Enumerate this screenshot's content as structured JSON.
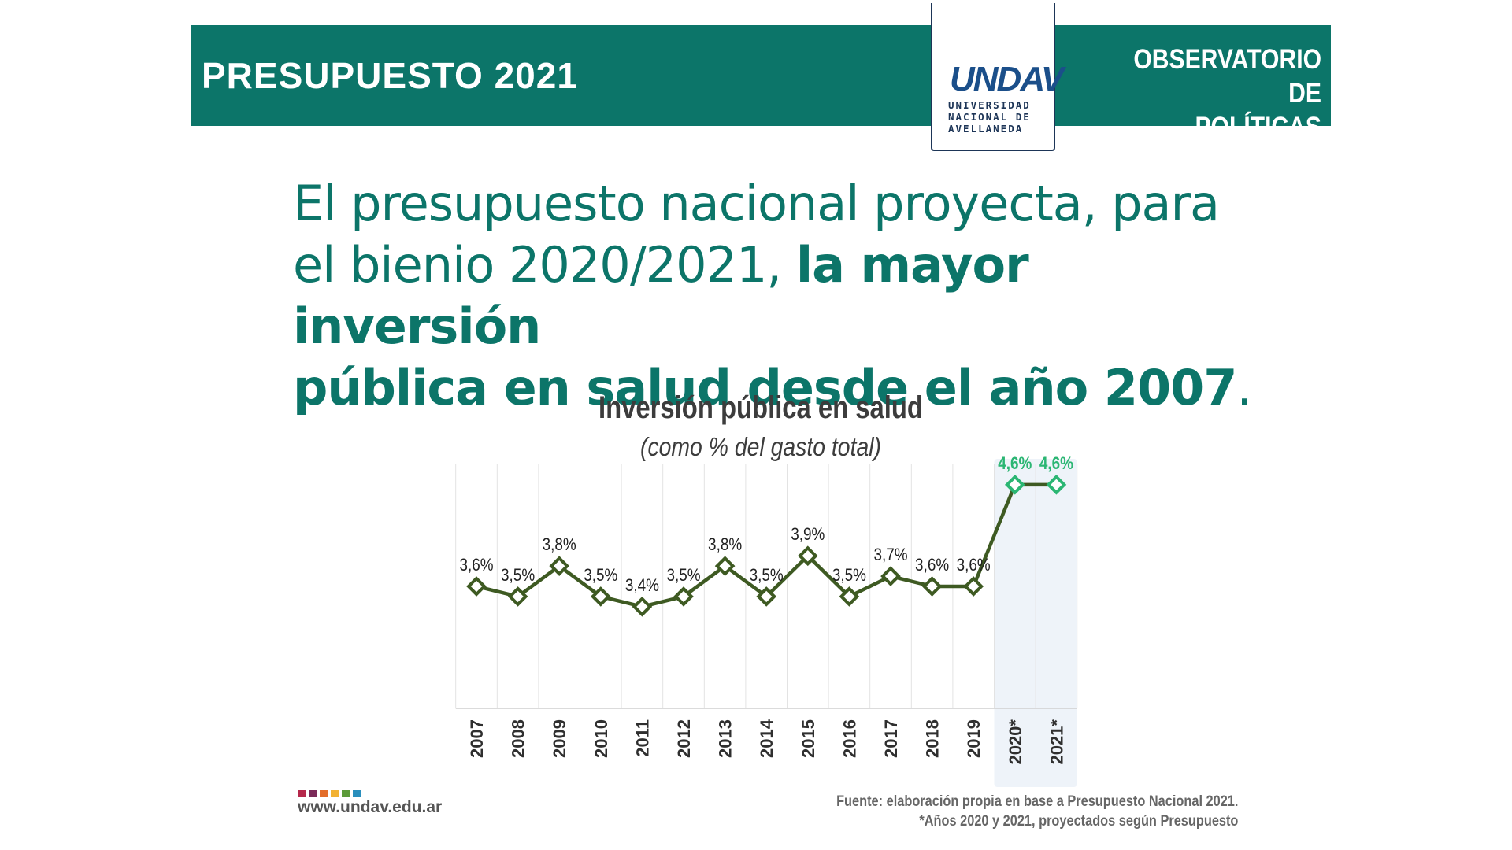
{
  "header": {
    "left_title": "PRESUPUESTO 2021",
    "right_title_line1": "OBSERVATORIO DE",
    "right_title_line2": "POLÍTICAS PÚBLICAS",
    "logo_mark": "UNDAV",
    "logo_line1": "UNIVERSIDAD",
    "logo_line2": "NACIONAL DE",
    "logo_line3": "AVELLANEDA"
  },
  "headline": {
    "line1": "El presupuesto nacional proyecta, para",
    "line2_regular": "el bienio 2020/2021, ",
    "line2_bold": "la mayor inversión",
    "line3_bold": "pública en salud desde el año 2007",
    "line3_end": "."
  },
  "colors": {
    "brand": "#0c7569",
    "series": "#3e5a22",
    "projected": "#2bb673",
    "highlight_band": "#eef3f9"
  },
  "chart_data": {
    "type": "line",
    "title": "Inversión pública en salud",
    "subtitle": "(como % del gasto total)",
    "categories": [
      "2007",
      "2008",
      "2009",
      "2010",
      "2011",
      "2012",
      "2013",
      "2014",
      "2015",
      "2016",
      "2017",
      "2018",
      "2019",
      "2020*",
      "2021*"
    ],
    "values": [
      3.6,
      3.5,
      3.8,
      3.5,
      3.4,
      3.5,
      3.8,
      3.5,
      3.9,
      3.5,
      3.7,
      3.6,
      3.6,
      4.6,
      4.6
    ],
    "labels": [
      "3,6%",
      "3,5%",
      "3,8%",
      "3,5%",
      "3,4%",
      "3,5%",
      "3,8%",
      "3,5%",
      "3,9%",
      "3,5%",
      "3,7%",
      "3,6%",
      "3,6%",
      "4,6%",
      "4,6%"
    ],
    "projected": [
      false,
      false,
      false,
      false,
      false,
      false,
      false,
      false,
      false,
      false,
      false,
      false,
      false,
      true,
      true
    ],
    "grid": true,
    "legend": "none"
  },
  "footer": {
    "url": "www.undav.edu.ar",
    "source_line1": "Fuente: elaboración propia en base a Presupuesto Nacional 2021.",
    "source_line2": "*Años 2020 y 2021, proyectados según Presupuesto",
    "swatch_colors": [
      "#b5284b",
      "#7b2a58",
      "#e36d2a",
      "#f2b233",
      "#5c9b3a",
      "#2a8fbd"
    ]
  }
}
